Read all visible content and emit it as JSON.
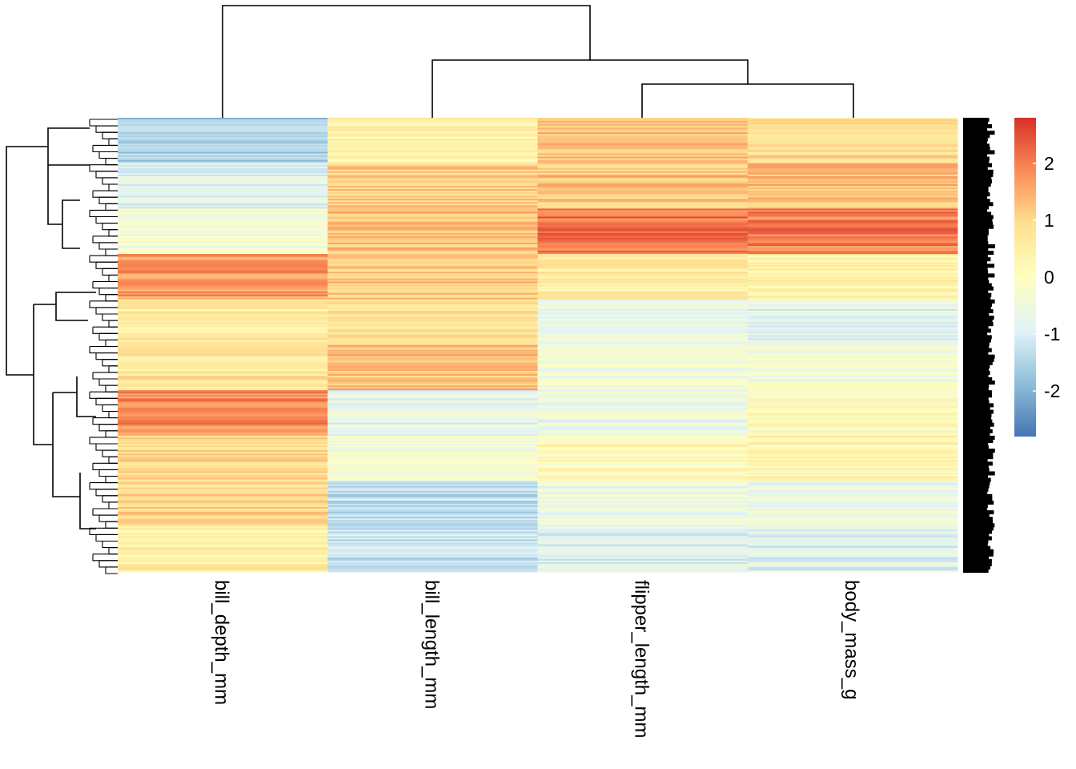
{
  "chart_data": {
    "type": "heatmap",
    "title": "",
    "columns": [
      "bill_depth_mm",
      "bill_length_mm",
      "flipper_length_mm",
      "body_mass_g"
    ],
    "colorscale": {
      "min": -2.8,
      "max": 2.8,
      "ticks": [
        2,
        1,
        0,
        -1,
        -2
      ],
      "colors": [
        "#4575b4",
        "#91bfdb",
        "#e0f3f8",
        "#ffffbf",
        "#fee090",
        "#fc8d59",
        "#d73027"
      ]
    },
    "row_blocks": [
      {
        "bill_depth_mm": -1.6,
        "bill_length_mm": 0.4,
        "flipper_length_mm": 1.3,
        "body_mass_g": 0.9
      },
      {
        "bill_depth_mm": -0.9,
        "bill_length_mm": 1.1,
        "flipper_length_mm": 1.2,
        "body_mass_g": 1.3
      },
      {
        "bill_depth_mm": -0.4,
        "bill_length_mm": 1.3,
        "flipper_length_mm": 2.1,
        "body_mass_g": 2.0
      },
      {
        "bill_depth_mm": 1.7,
        "bill_length_mm": 1.2,
        "flipper_length_mm": 0.6,
        "body_mass_g": 0.4
      },
      {
        "bill_depth_mm": 0.6,
        "bill_length_mm": 0.8,
        "flipper_length_mm": -0.7,
        "body_mass_g": -0.8
      },
      {
        "bill_depth_mm": 0.7,
        "bill_length_mm": 1.3,
        "flipper_length_mm": -0.4,
        "body_mass_g": -0.3
      },
      {
        "bill_depth_mm": 1.9,
        "bill_length_mm": -0.7,
        "flipper_length_mm": -0.6,
        "body_mass_g": 0.1
      },
      {
        "bill_depth_mm": 0.9,
        "bill_length_mm": -0.3,
        "flipper_length_mm": 0.2,
        "body_mass_g": 0.3
      },
      {
        "bill_depth_mm": 1.0,
        "bill_length_mm": -1.3,
        "flipper_length_mm": -0.6,
        "body_mass_g": -0.6
      },
      {
        "bill_depth_mm": 0.5,
        "bill_length_mm": -1.2,
        "flipper_length_mm": -0.9,
        "body_mass_g": -0.9
      }
    ],
    "column_dendrogram": "((bill_depth_mm), (bill_length_mm, (flipper_length_mm, body_mass_g)))",
    "grid": false,
    "legend": "right"
  }
}
